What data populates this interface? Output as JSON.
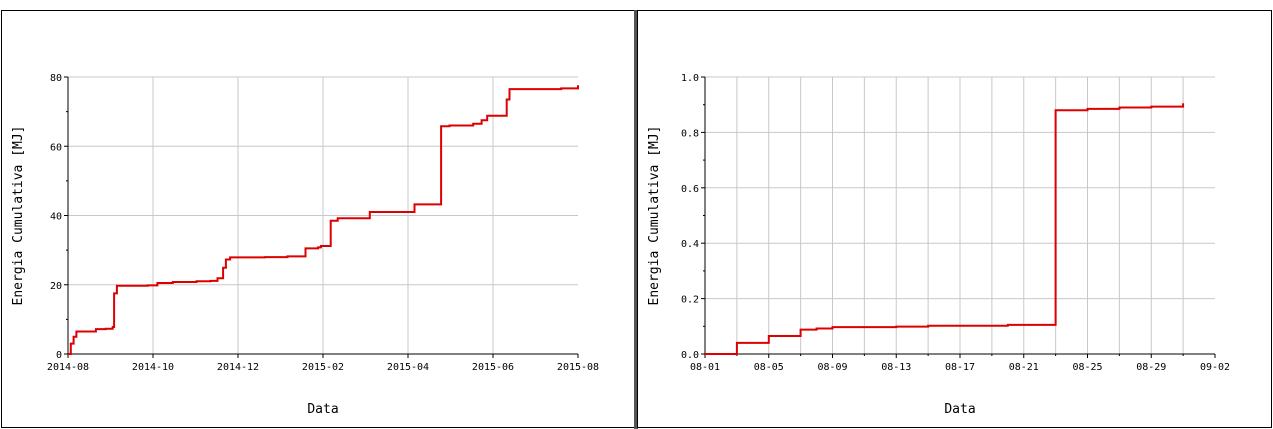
{
  "chart_data": [
    {
      "type": "line",
      "title": "",
      "xlabel": "Data",
      "ylabel": "Energia Cumulativa [MJ]",
      "x_tick_labels": [
        "2014-08",
        "2014-10",
        "2014-12",
        "2015-02",
        "2015-04",
        "2015-06",
        "2015-08"
      ],
      "y_tick_labels": [
        "0",
        "20",
        "40",
        "60",
        "80"
      ],
      "xlim": [
        "2014-08-01",
        "2015-08-01"
      ],
      "ylim": [
        0,
        80
      ],
      "grid": true,
      "step": true,
      "series": [
        {
          "color": "#dd0000",
          "x": [
            "2014-08-01",
            "2014-08-03",
            "2014-08-05",
            "2014-08-07",
            "2014-08-14",
            "2014-08-21",
            "2014-08-28",
            "2014-09-02",
            "2014-09-03",
            "2014-09-05",
            "2014-09-27",
            "2014-10-04",
            "2014-10-15",
            "2014-11-01",
            "2014-11-11",
            "2014-11-16",
            "2014-11-20",
            "2014-11-22",
            "2014-11-25",
            "2014-12-20",
            "2015-01-05",
            "2015-01-18",
            "2015-01-27",
            "2015-01-29",
            "2015-02-05",
            "2015-02-10",
            "2015-03-05",
            "2015-04-06",
            "2015-04-25",
            "2015-05-01",
            "2015-05-18",
            "2015-05-24",
            "2015-05-28",
            "2015-06-05",
            "2015-06-11",
            "2015-06-13",
            "2015-07-20",
            "2015-08-01"
          ],
          "y": [
            0,
            3,
            5,
            6.5,
            6.5,
            7.2,
            7.3,
            7.8,
            17.5,
            19.7,
            19.8,
            20.5,
            20.8,
            21.0,
            21.1,
            21.9,
            24.9,
            27.3,
            27.9,
            28.0,
            28.2,
            30.5,
            30.8,
            31.2,
            38.5,
            39.2,
            41.0,
            43.2,
            65.8,
            66.0,
            66.5,
            67.5,
            68.8,
            68.8,
            73.5,
            76.5,
            76.7,
            77.6
          ]
        }
      ]
    },
    {
      "type": "line",
      "title": "",
      "xlabel": "Data",
      "ylabel": "Energia Cumulativa [MJ]",
      "x_tick_labels": [
        "08-01",
        "08-05",
        "08-09",
        "08-13",
        "08-17",
        "08-21",
        "08-25",
        "08-29",
        "09-02"
      ],
      "y_tick_labels": [
        "0.0",
        "0.2",
        "0.4",
        "0.6",
        "0.8",
        "1.0"
      ],
      "xlim": [
        "08-01",
        "09-02"
      ],
      "ylim": [
        0,
        1.0
      ],
      "grid": true,
      "step": true,
      "series": [
        {
          "color": "#dd0000",
          "x": [
            "08-01",
            "08-03",
            "08-05",
            "08-07",
            "08-08",
            "08-09",
            "08-13",
            "08-15",
            "08-20",
            "08-23",
            "08-25",
            "08-27",
            "08-29",
            "08-31"
          ],
          "y": [
            0.0,
            0.04,
            0.065,
            0.088,
            0.092,
            0.097,
            0.099,
            0.102,
            0.105,
            0.88,
            0.885,
            0.89,
            0.893,
            0.905
          ]
        }
      ]
    }
  ]
}
